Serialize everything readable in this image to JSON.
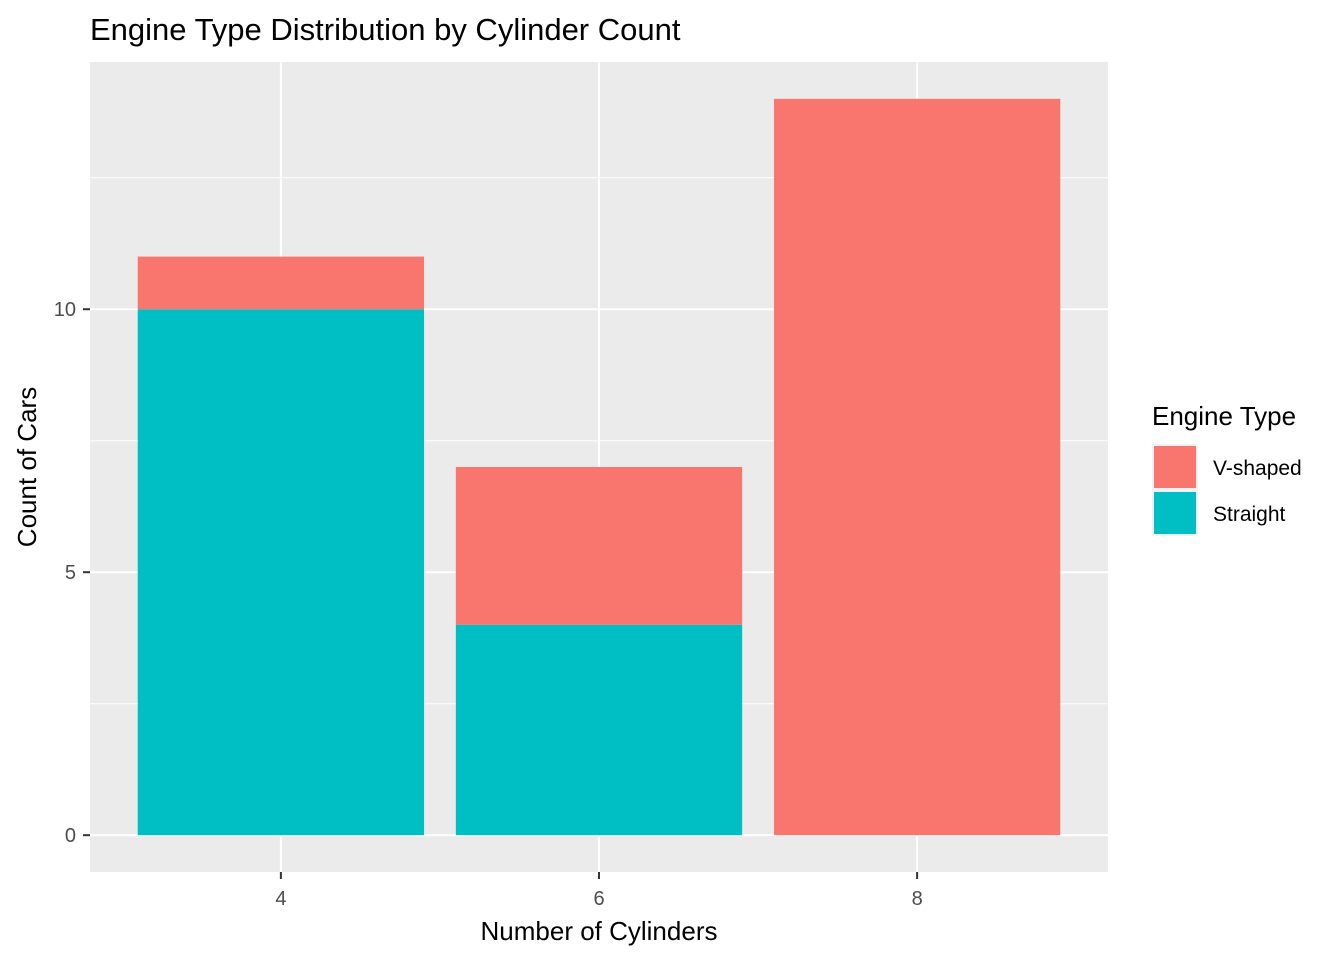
{
  "chart_data": {
    "type": "bar",
    "stacked": true,
    "title": "Engine Type Distribution by Cylinder Count",
    "xlabel": "Number of Cylinders",
    "ylabel": "Count of Cars",
    "categories": [
      "4",
      "6",
      "8"
    ],
    "series": [
      {
        "name": "Straight",
        "values": [
          10,
          4,
          0
        ],
        "color": "#00BFC4"
      },
      {
        "name": "V-shaped",
        "values": [
          1,
          3,
          14
        ],
        "color": "#F8766D"
      }
    ],
    "y_ticks": [
      0,
      5,
      10
    ],
    "ylim": [
      -0.7,
      14.7
    ],
    "grid": true,
    "panel_background": "#EBEBEB",
    "legend": {
      "title": "Engine Type",
      "position": "right",
      "entries": [
        {
          "label": "V-shaped",
          "color": "#F8766D"
        },
        {
          "label": "Straight",
          "color": "#00BFC4"
        }
      ]
    }
  }
}
